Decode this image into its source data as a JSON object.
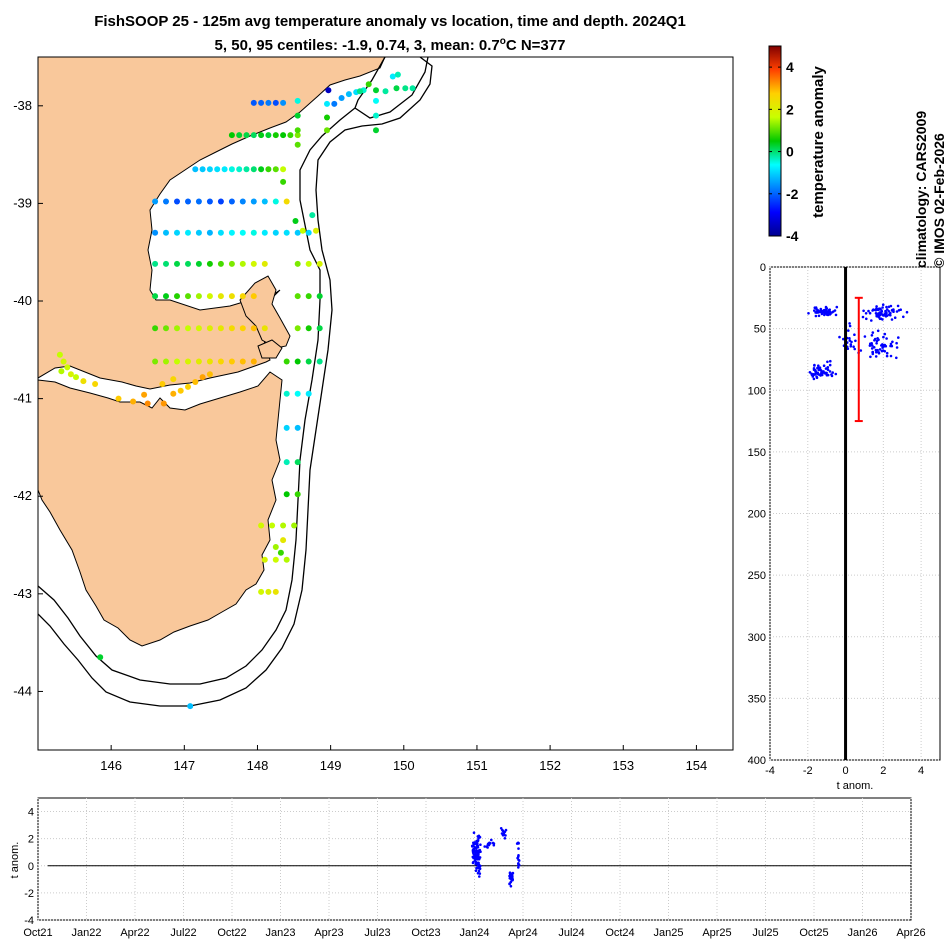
{
  "title": {
    "line1": "FishSOOP 25 - 125m avg temperature anomaly vs location, time and depth. 2024Q1",
    "line2_prefix": "5, 50, 95 centiles: -1.9, 0.74, 3, mean: 0.7",
    "line2_degree": "o",
    "line2_suffix": "C N=377"
  },
  "side_note": {
    "line1": "climatology: CARS2009",
    "line2": "© IMOS 02-Feb-2026"
  },
  "colors": {
    "land": "#f9c89b",
    "depth_dots": "#0000ff",
    "mean_bar": "#ff0000",
    "grid": "#cccccc"
  },
  "chart_data": [
    {
      "id": "map",
      "type": "scatter",
      "xlabel": "",
      "ylabel": "",
      "xlim": [
        145.0,
        154.5
      ],
      "ylim": [
        -44.6,
        -37.5
      ],
      "xticks": [
        "146",
        "147",
        "148",
        "149",
        "150",
        "151",
        "152",
        "153",
        "154"
      ],
      "yticks": [
        "-38",
        "-39",
        "-40",
        "-41",
        "-42",
        "-43",
        "-44"
      ],
      "colorbar": {
        "label": "temperature anomaly",
        "range": [
          -4,
          5
        ],
        "ticks": [
          "4",
          "2",
          "0",
          "-2",
          "-4"
        ]
      },
      "transects": [
        {
          "lat": -37.97,
          "lons": [
            147.95,
            148.05,
            148.15,
            148.25,
            148.35
          ],
          "anoms": [
            -2.1,
            -2.0,
            -1.8,
            -2.2,
            -1.6
          ]
        },
        {
          "lat": -38.3,
          "lons": [
            147.65,
            147.75,
            147.85,
            147.95,
            148.05,
            148.15,
            148.25,
            148.35,
            148.45,
            148.55
          ],
          "anoms": [
            0.5,
            0.3,
            0.2,
            0.1,
            0.4,
            0.3,
            0.6,
            0.5,
            0.8,
            1.2
          ]
        },
        {
          "lat": -38.65,
          "lons": [
            147.15,
            147.25,
            147.35,
            147.45,
            147.55,
            147.65,
            147.75,
            147.85,
            147.95,
            148.05,
            148.15,
            148.25,
            148.35
          ],
          "anoms": [
            -1.2,
            -1.1,
            -1.0,
            -0.9,
            -0.8,
            -0.5,
            -0.4,
            -0.2,
            0.0,
            0.4,
            0.8,
            1.0,
            1.6
          ]
        },
        {
          "lat": -38.98,
          "lons": [
            146.6,
            146.75,
            146.9,
            147.05,
            147.2,
            147.35,
            147.5,
            147.65,
            147.8,
            147.95,
            148.1,
            148.25,
            148.4
          ],
          "anoms": [
            -1.5,
            -1.8,
            -2.2,
            -2.0,
            -1.9,
            -2.1,
            -2.3,
            -2.0,
            -1.7,
            -1.5,
            -1.2,
            -0.5,
            2.5
          ]
        },
        {
          "lat": -39.3,
          "lons": [
            146.6,
            146.75,
            146.9,
            147.05,
            147.2,
            147.35,
            147.5,
            147.65,
            147.8,
            147.95,
            148.1,
            148.25,
            148.4,
            148.55,
            148.7
          ],
          "anoms": [
            -1.6,
            -1.2,
            -1.0,
            -0.8,
            -1.1,
            -1.3,
            -0.9,
            -0.7,
            -0.6,
            -0.5,
            -0.8,
            -1.0,
            -0.9,
            -1.1,
            -1.0
          ]
        },
        {
          "lat": -39.62,
          "lons": [
            146.6,
            146.75,
            146.9,
            147.05,
            147.2,
            147.35,
            147.5,
            147.65,
            147.8,
            147.95,
            148.1,
            148.55,
            148.7,
            148.85
          ],
          "anoms": [
            -0.1,
            0.0,
            0.2,
            0.1,
            0.3,
            0.6,
            0.9,
            1.2,
            1.5,
            1.8,
            2.1,
            1.2,
            1.6,
            1.9
          ]
        },
        {
          "lat": -39.95,
          "lons": [
            146.6,
            146.75,
            146.9,
            147.05,
            147.2,
            147.35,
            147.5,
            147.65,
            147.8,
            147.95,
            148.55,
            148.7,
            148.85
          ],
          "anoms": [
            0.2,
            0.4,
            0.7,
            1.0,
            1.4,
            1.8,
            2.2,
            2.4,
            2.6,
            2.8,
            1.0,
            0.8,
            0.3
          ]
        },
        {
          "lat": -40.28,
          "lons": [
            146.6,
            146.75,
            146.9,
            147.05,
            147.2,
            147.35,
            147.5,
            147.65,
            147.8,
            147.95,
            148.1,
            148.55,
            148.7,
            148.85
          ],
          "anoms": [
            0.8,
            1.1,
            1.4,
            1.6,
            1.8,
            2.0,
            2.2,
            2.5,
            2.7,
            2.9,
            2.3,
            1.2,
            0.6,
            0.2
          ]
        },
        {
          "lat": -40.62,
          "lons": [
            146.6,
            146.75,
            146.9,
            147.05,
            147.2,
            147.35,
            147.5,
            147.65,
            147.8,
            147.95,
            148.4,
            148.55,
            148.7,
            148.85
          ],
          "anoms": [
            1.2,
            1.4,
            1.6,
            1.9,
            2.1,
            2.3,
            2.6,
            2.8,
            2.9,
            3.0,
            0.8,
            0.5,
            0.2,
            -0.1
          ]
        },
        {
          "lat": -40.95,
          "lons": [
            148.4,
            148.55,
            148.7
          ],
          "anoms": [
            -0.4,
            -0.6,
            -0.8
          ]
        },
        {
          "lat": -41.3,
          "lons": [
            148.4,
            148.55
          ],
          "anoms": [
            -1.0,
            -1.2
          ]
        },
        {
          "lat": -41.65,
          "lons": [
            148.4,
            148.55
          ],
          "anoms": [
            -0.3,
            0.1
          ]
        },
        {
          "lat": -41.98,
          "lons": [
            148.4,
            148.55
          ],
          "anoms": [
            0.5,
            0.8
          ]
        },
        {
          "lat": -42.3,
          "lons": [
            148.05,
            148.2,
            148.35,
            148.5
          ],
          "anoms": [
            1.8,
            1.6,
            1.5,
            1.4
          ]
        },
        {
          "lat": -42.65,
          "lons": [
            148.1,
            148.25,
            148.4
          ],
          "anoms": [
            1.9,
            1.7,
            1.5
          ]
        },
        {
          "lat": -42.98,
          "lons": [
            148.05,
            148.15,
            148.25
          ],
          "anoms": [
            1.8,
            2.0,
            2.3
          ]
        }
      ],
      "points": [
        {
          "lon": 148.55,
          "lat": -38.4,
          "anom": 1.0
        },
        {
          "lon": 148.55,
          "lat": -38.25,
          "anom": 0.9
        },
        {
          "lon": 148.55,
          "lat": -38.1,
          "anom": 0.3
        },
        {
          "lon": 148.55,
          "lat": -37.95,
          "anom": -0.5
        },
        {
          "lon": 148.95,
          "lat": -38.25,
          "anom": 1.1
        },
        {
          "lon": 148.95,
          "lat": -38.12,
          "anom": 0.6
        },
        {
          "lon": 148.95,
          "lat": -37.98,
          "anom": -0.8
        },
        {
          "lon": 148.97,
          "lat": -37.84,
          "anom": -3.5
        },
        {
          "lon": 149.05,
          "lat": -37.98,
          "anom": -1.8
        },
        {
          "lon": 149.15,
          "lat": -37.92,
          "anom": -1.5
        },
        {
          "lon": 149.25,
          "lat": -37.88,
          "anom": -1.2
        },
        {
          "lon": 149.35,
          "lat": -37.86,
          "anom": -0.9
        },
        {
          "lon": 149.45,
          "lat": -37.84,
          "anom": -0.4
        },
        {
          "lon": 149.52,
          "lat": -37.78,
          "anom": 0.8
        },
        {
          "lon": 149.62,
          "lat": -37.84,
          "anom": 0.3
        },
        {
          "lon": 149.62,
          "lat": -37.95,
          "anom": -0.6
        },
        {
          "lon": 149.62,
          "lat": -38.1,
          "anom": -0.4
        },
        {
          "lon": 149.62,
          "lat": -38.25,
          "anom": 0.3
        },
        {
          "lon": 149.75,
          "lat": -37.85,
          "anom": -0.2
        },
        {
          "lon": 149.85,
          "lat": -37.7,
          "anom": -0.8
        },
        {
          "lon": 149.92,
          "lat": -37.68,
          "anom": -0.3
        },
        {
          "lon": 149.9,
          "lat": -37.82,
          "anom": 0.2
        },
        {
          "lon": 150.02,
          "lat": -37.82,
          "anom": -0.1
        },
        {
          "lon": 150.12,
          "lat": -37.82,
          "anom": -0.2
        },
        {
          "lon": 149.4,
          "lat": -37.85,
          "anom": -0.1
        },
        {
          "lon": 148.35,
          "lat": -38.78,
          "anom": 0.8
        },
        {
          "lon": 148.52,
          "lat": -39.18,
          "anom": 0.4
        },
        {
          "lon": 148.62,
          "lat": -39.28,
          "anom": 1.6
        },
        {
          "lon": 148.75,
          "lat": -39.12,
          "anom": -0.2
        },
        {
          "lon": 148.8,
          "lat": -39.28,
          "anom": 2.0
        },
        {
          "lon": 148.25,
          "lat": -42.52,
          "anom": 1.4
        },
        {
          "lon": 148.32,
          "lat": -42.58,
          "anom": 0.8
        },
        {
          "lon": 148.35,
          "lat": -42.45,
          "anom": 2.2
        },
        {
          "lon": 145.85,
          "lat": -43.65,
          "anom": 0.3
        },
        {
          "lon": 147.08,
          "lat": -44.15,
          "anom": -1.2
        },
        {
          "lon": 145.3,
          "lat": -40.55,
          "anom": 1.6
        },
        {
          "lon": 145.35,
          "lat": -40.62,
          "anom": 1.8
        },
        {
          "lon": 145.4,
          "lat": -40.68,
          "anom": 1.7
        },
        {
          "lon": 145.45,
          "lat": -40.75,
          "anom": 1.9
        },
        {
          "lon": 145.32,
          "lat": -40.72,
          "anom": 1.5
        },
        {
          "lon": 145.52,
          "lat": -40.78,
          "anom": 1.6
        },
        {
          "lon": 145.62,
          "lat": -40.82,
          "anom": 2.4
        },
        {
          "lon": 145.78,
          "lat": -40.85,
          "anom": 2.6
        },
        {
          "lon": 146.1,
          "lat": -41.0,
          "anom": 2.8
        },
        {
          "lon": 146.3,
          "lat": -41.03,
          "anom": 3.0
        },
        {
          "lon": 146.45,
          "lat": -40.96,
          "anom": 3.1
        },
        {
          "lon": 146.5,
          "lat": -41.05,
          "anom": 3.3
        },
        {
          "lon": 146.72,
          "lat": -41.05,
          "anom": 3.2
        },
        {
          "lon": 146.85,
          "lat": -40.95,
          "anom": 3.0
        },
        {
          "lon": 146.95,
          "lat": -40.92,
          "anom": 2.8
        },
        {
          "lon": 147.05,
          "lat": -40.88,
          "anom": 2.7
        },
        {
          "lon": 147.15,
          "lat": -40.83,
          "anom": 2.9
        },
        {
          "lon": 147.25,
          "lat": -40.78,
          "anom": 3.1
        },
        {
          "lon": 147.35,
          "lat": -40.75,
          "anom": 2.9
        },
        {
          "lon": 146.85,
          "lat": -40.8,
          "anom": 2.6
        },
        {
          "lon": 146.7,
          "lat": -40.85,
          "anom": 2.8
        }
      ]
    },
    {
      "id": "depth-profile",
      "type": "scatter",
      "xlabel": "t anom.",
      "ylabel": "",
      "xlim": [
        -4,
        5
      ],
      "ylim": [
        0,
        400
      ],
      "xticks": [
        "-4",
        "-2",
        "0",
        "2",
        "4"
      ],
      "yticks": [
        "0",
        "50",
        "100",
        "150",
        "200",
        "250",
        "300",
        "350",
        "400"
      ],
      "mean_anomaly": 0.7,
      "centile_range_depth": [
        25,
        125
      ],
      "clusters": [
        {
          "x_center": -1.2,
          "x_spread": 1.2,
          "depth_center": 36,
          "depth_spread": 5,
          "n": 55
        },
        {
          "x_center": 2.0,
          "x_spread": 1.4,
          "depth_center": 37,
          "depth_spread": 8,
          "n": 70
        },
        {
          "x_center": 1.8,
          "x_spread": 1.3,
          "depth_center": 65,
          "depth_spread": 14,
          "n": 55
        },
        {
          "x_center": -1.3,
          "x_spread": 1.0,
          "depth_center": 85,
          "depth_spread": 10,
          "n": 55
        },
        {
          "x_center": 0.2,
          "x_spread": 0.6,
          "depth_center": 60,
          "depth_spread": 20,
          "n": 20
        }
      ]
    },
    {
      "id": "time-series",
      "type": "scatter",
      "xlabel": "",
      "ylabel": "t anom.",
      "ylim": [
        -4,
        5
      ],
      "yticks": [
        "4",
        "2",
        "0",
        "-2",
        "-4"
      ],
      "xticks": [
        "Oct21",
        "Jan22",
        "Apr22",
        "Jul22",
        "Oct22",
        "Jan23",
        "Apr23",
        "Jul23",
        "Oct23",
        "Jan24",
        "Apr24",
        "Jul24",
        "Oct24",
        "Jan25",
        "Apr25",
        "Jul25",
        "Oct25",
        "Jan26",
        "Apr26"
      ],
      "xlim_quarters": [
        0,
        18
      ],
      "clusters": [
        {
          "t_center": 9.05,
          "t_spread": 0.12,
          "v_center": 0.8,
          "v_spread": 1.9,
          "n": 110
        },
        {
          "t_center": 9.3,
          "t_spread": 0.18,
          "v_center": 1.6,
          "v_spread": 0.6,
          "n": 15
        },
        {
          "t_center": 9.6,
          "t_spread": 0.1,
          "v_center": 2.4,
          "v_spread": 0.6,
          "n": 12
        },
        {
          "t_center": 9.75,
          "t_spread": 0.06,
          "v_center": -1.0,
          "v_spread": 1.0,
          "n": 25
        },
        {
          "t_center": 9.9,
          "t_spread": 0.04,
          "v_center": 0.5,
          "v_spread": 1.6,
          "n": 15
        }
      ]
    }
  ]
}
